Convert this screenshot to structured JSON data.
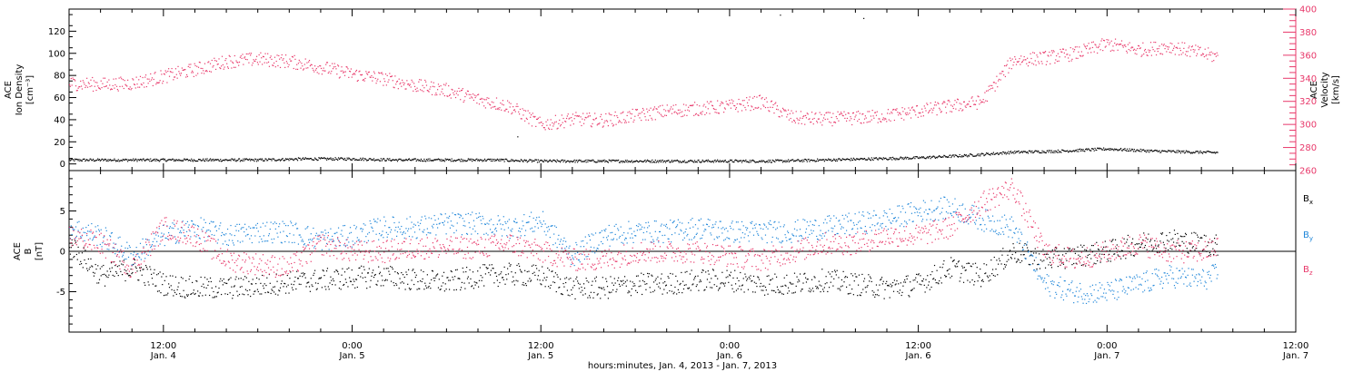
{
  "footer": {
    "caption": "hours:minutes, Jan.  4, 2013 - Jan.  7, 2013"
  },
  "colors": {
    "axes": "#000000",
    "density": "#000000",
    "velocity": "#e8386a",
    "bx": "#000000",
    "by": "#1f86d9",
    "bz": "#e8386a"
  },
  "chart_data": [
    {
      "type": "scatter",
      "ylabel_left": [
        "ACE",
        "Ion Density",
        "[cm⁻³]"
      ],
      "ylabel_right": [
        "ACE",
        "Velocity",
        "[km/s]"
      ],
      "ylim_left": [
        -6,
        140
      ],
      "yticks_left": [
        0,
        20,
        40,
        60,
        80,
        100,
        120
      ],
      "ylim_right": [
        260,
        400
      ],
      "yticks_right": [
        260,
        280,
        300,
        320,
        340,
        360,
        380,
        400
      ],
      "series": [
        {
          "key": "density",
          "axis": "left",
          "x_hours": [
            0,
            3,
            6,
            9,
            12,
            15,
            18,
            21,
            24,
            27,
            30,
            33,
            36,
            39,
            42,
            45,
            48,
            51,
            54,
            57,
            60,
            63,
            66,
            69,
            72,
            75,
            78
          ],
          "values": [
            4,
            4,
            4,
            4,
            4,
            5,
            5,
            4,
            4,
            4,
            3,
            3,
            3,
            3,
            3,
            3,
            4,
            5,
            6,
            8,
            11,
            12,
            14,
            12,
            11,
            10,
            9
          ]
        },
        {
          "key": "velocity",
          "axis": "right",
          "x_hours": [
            0,
            2,
            4,
            6,
            8,
            10,
            12,
            14,
            16,
            18,
            20,
            22,
            24,
            26,
            28,
            30,
            32,
            34,
            36,
            38,
            40,
            42,
            44,
            46,
            48,
            50,
            52,
            54,
            56,
            58,
            60,
            62,
            64,
            66,
            68,
            70,
            72,
            74,
            76,
            78
          ],
          "values": [
            336,
            335,
            336,
            342,
            348,
            355,
            357,
            355,
            350,
            344,
            340,
            334,
            330,
            322,
            316,
            300,
            305,
            304,
            308,
            312,
            314,
            316,
            320,
            306,
            305,
            306,
            308,
            312,
            316,
            320,
            356,
            358,
            362,
            370,
            365,
            368,
            362,
            356,
            356,
            357
          ]
        }
      ],
      "spikes": [
        {
          "x_hours": 45.2,
          "density": 135
        },
        {
          "x_hours": 50.5,
          "density": 132
        },
        {
          "x_hours": 28.5,
          "density": 25
        }
      ]
    },
    {
      "type": "scatter",
      "ylabel_left": [
        "ACE",
        "B",
        "[nT]"
      ],
      "ylim_left": [
        -10,
        10
      ],
      "yticks_left": [
        -5,
        0,
        5
      ],
      "series": [
        {
          "key": "bx",
          "name": "Bx",
          "x_hours": [
            0,
            2,
            4,
            6,
            8,
            10,
            12,
            14,
            16,
            18,
            20,
            22,
            24,
            26,
            28,
            30,
            32,
            34,
            36,
            38,
            40,
            42,
            44,
            46,
            48,
            50,
            52,
            54,
            56,
            58,
            60,
            62,
            64,
            66,
            68,
            70,
            72,
            74,
            76,
            78
          ],
          "values": [
            1,
            -3,
            -2,
            -4,
            -4.5,
            -4.5,
            -4.2,
            -3.8,
            -3.5,
            -3.2,
            -3,
            -3.5,
            -3.8,
            -3,
            -2.8,
            -3,
            -4.5,
            -4.5,
            -4,
            -4,
            -3.5,
            -3.5,
            -4,
            -4,
            -3.5,
            -4,
            -4.5,
            -4,
            -2,
            -3,
            0,
            -1,
            -0.5,
            0,
            1,
            1.5,
            1,
            0.5,
            2,
            3
          ]
        },
        {
          "key": "by",
          "name": "By",
          "x_hours": [
            0,
            2,
            4,
            6,
            8,
            10,
            12,
            14,
            16,
            18,
            20,
            22,
            24,
            26,
            28,
            30,
            32,
            34,
            36,
            38,
            40,
            42,
            44,
            46,
            48,
            50,
            52,
            54,
            56,
            58,
            60,
            62,
            64,
            66,
            68,
            70,
            72,
            74,
            76,
            78
          ],
          "values": [
            3,
            2,
            -0.5,
            2,
            3,
            2,
            2.5,
            2.5,
            1.5,
            2,
            3,
            3,
            3.5,
            3.5,
            3,
            3.8,
            -0.5,
            2,
            2.5,
            2.5,
            3,
            2.5,
            2.5,
            2.5,
            3,
            3.5,
            4,
            5,
            5.5,
            4,
            3,
            -4,
            -5,
            -5,
            -4,
            -3,
            -3.5,
            -2,
            -4,
            0
          ]
        },
        {
          "key": "bz",
          "name": "Bz",
          "x_hours": [
            0,
            2,
            4,
            6,
            8,
            10,
            12,
            14,
            16,
            18,
            20,
            22,
            24,
            26,
            28,
            30,
            32,
            34,
            36,
            38,
            40,
            42,
            44,
            46,
            48,
            50,
            52,
            54,
            56,
            58,
            60,
            62,
            64,
            66,
            68,
            70,
            72,
            74,
            76,
            78
          ],
          "values": [
            2,
            1,
            -2,
            3,
            2,
            -1,
            -1.5,
            -2,
            1,
            0,
            0,
            0.5,
            0.5,
            0.5,
            1,
            0,
            -1,
            -1,
            0,
            0,
            0,
            -0.5,
            -1,
            0,
            1,
            1,
            2,
            2,
            3,
            6,
            8,
            0,
            -1,
            0,
            1,
            0,
            0,
            1,
            2,
            3
          ]
        }
      ]
    }
  ],
  "x_axis": {
    "start_hour": 6,
    "end_hour": 84,
    "data_end_hour": 79,
    "ticks": [
      {
        "hour": 12,
        "time": "12:00",
        "date": "Jan. 4"
      },
      {
        "hour": 24,
        "time": "0:00",
        "date": "Jan. 5"
      },
      {
        "hour": 36,
        "time": "12:00",
        "date": "Jan. 5"
      },
      {
        "hour": 48,
        "time": "0:00",
        "date": "Jan. 6"
      },
      {
        "hour": 60,
        "time": "12:00",
        "date": "Jan. 6"
      },
      {
        "hour": 72,
        "time": "0:00",
        "date": "Jan. 7"
      },
      {
        "hour": 84,
        "time": "12:00",
        "date": "Jan. 7"
      }
    ]
  }
}
